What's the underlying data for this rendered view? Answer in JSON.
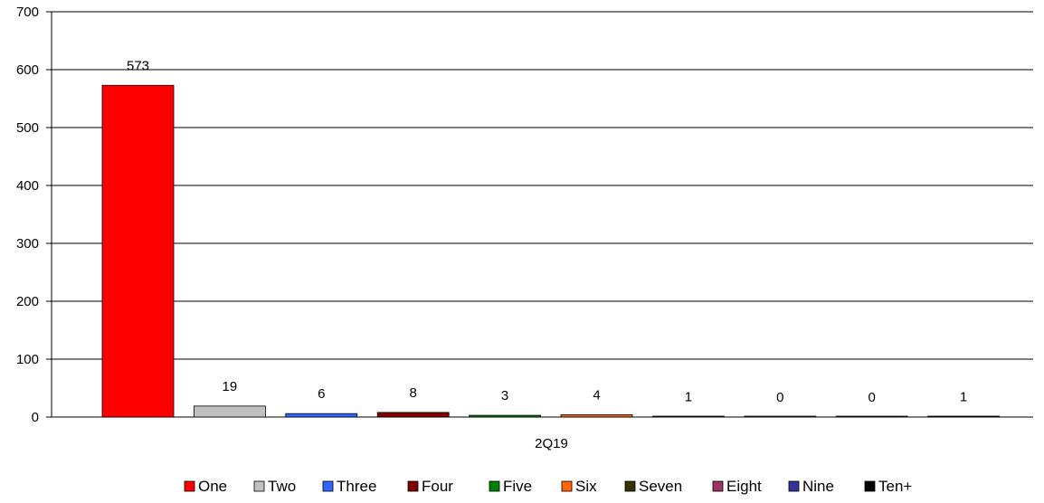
{
  "chart_data": {
    "type": "bar",
    "categories": [
      "2Q19"
    ],
    "series": [
      {
        "name": "One",
        "values": [
          573
        ],
        "color": "#ff0000"
      },
      {
        "name": "Two",
        "values": [
          19
        ],
        "color": "#c0c0c0"
      },
      {
        "name": "Three",
        "values": [
          6
        ],
        "color": "#3366ff"
      },
      {
        "name": "Four",
        "values": [
          8
        ],
        "color": "#800000"
      },
      {
        "name": "Five",
        "values": [
          3
        ],
        "color": "#008000"
      },
      {
        "name": "Six",
        "values": [
          4
        ],
        "color": "#ff6600"
      },
      {
        "name": "Seven",
        "values": [
          1
        ],
        "color": "#333300"
      },
      {
        "name": "Eight",
        "values": [
          0
        ],
        "color": "#993366"
      },
      {
        "name": "Nine",
        "values": [
          0
        ],
        "color": "#333399"
      },
      {
        "name": "Ten+",
        "values": [
          1
        ],
        "color": "#000000"
      }
    ],
    "ylim": [
      0,
      700
    ],
    "yticks": [
      0,
      100,
      200,
      300,
      400,
      500,
      600,
      700
    ],
    "grid": true,
    "legend_position": "bottom",
    "data_labels": true
  }
}
